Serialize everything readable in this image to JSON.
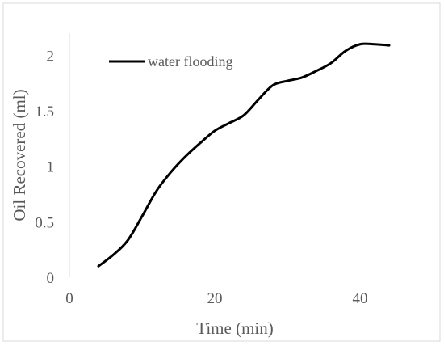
{
  "chart_data": {
    "type": "line",
    "title": "",
    "xlabel": "Time (min)",
    "ylabel": "Oil Recovered (ml)",
    "xlim": [
      0,
      45
    ],
    "ylim": [
      0,
      2.2
    ],
    "x_ticks": [
      0,
      20,
      40
    ],
    "y_ticks": [
      0,
      0.5,
      1,
      1.5,
      2
    ],
    "x_tick_labels": [
      "0",
      "20",
      "40"
    ],
    "y_tick_labels": [
      "0",
      "0.5",
      "1",
      "1.5",
      "2"
    ],
    "grid": false,
    "legend_position": "top-left",
    "series": [
      {
        "name": "water flooding",
        "color": "#000000",
        "x": [
          4,
          6,
          8,
          10,
          12,
          14,
          16,
          18,
          20,
          22,
          24,
          26,
          28,
          30,
          32,
          34,
          36,
          38,
          40,
          42,
          44
        ],
        "y": [
          0.1,
          0.2,
          0.33,
          0.55,
          0.78,
          0.95,
          1.09,
          1.21,
          1.32,
          1.39,
          1.46,
          1.6,
          1.73,
          1.77,
          1.8,
          1.86,
          1.93,
          2.04,
          2.1,
          2.1,
          2.09
        ]
      }
    ]
  }
}
